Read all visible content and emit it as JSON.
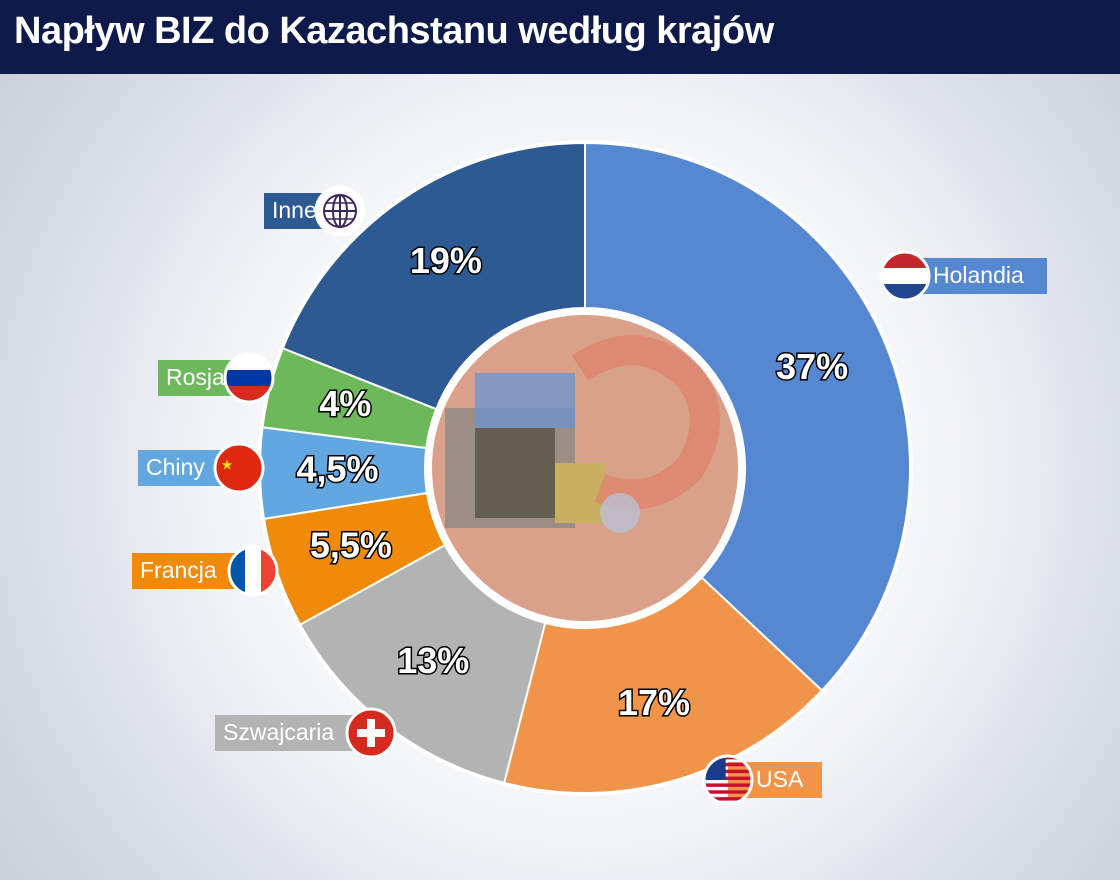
{
  "title": "Napływ BIZ do Kazachstanu według krajów",
  "colors": {
    "header_bg": "#0d1a4a",
    "Holandia": "#5588d0",
    "USA": "#f0944a",
    "Szwajcaria": "#b3b3b3",
    "Francja": "#f08a0a",
    "Chiny": "#62a7df",
    "Rosja": "#6db85a",
    "Inne": "#2e5a94"
  },
  "chart_data": {
    "type": "pie",
    "variant": "donut",
    "start_angle_deg": 0,
    "direction": "clockwise",
    "unit": "%",
    "slices": [
      {
        "label": "Holandia",
        "value": 37,
        "display": "37%",
        "icon": "flag-netherlands-icon"
      },
      {
        "label": "USA",
        "value": 17,
        "display": "17%",
        "icon": "flag-usa-icon"
      },
      {
        "label": "Szwajcaria",
        "value": 13,
        "display": "13%",
        "icon": "flag-switzerland-icon"
      },
      {
        "label": "Francja",
        "value": 5.5,
        "display": "5,5%",
        "icon": "flag-france-icon"
      },
      {
        "label": "Chiny",
        "value": 4.5,
        "display": "4,5%",
        "icon": "flag-china-icon"
      },
      {
        "label": "Rosja",
        "value": 4,
        "display": "4%",
        "icon": "flag-russia-icon"
      },
      {
        "label": "Inne",
        "value": 19,
        "display": "19%",
        "icon": "globe-icon"
      }
    ],
    "center_image": "euro-banknote-50"
  }
}
